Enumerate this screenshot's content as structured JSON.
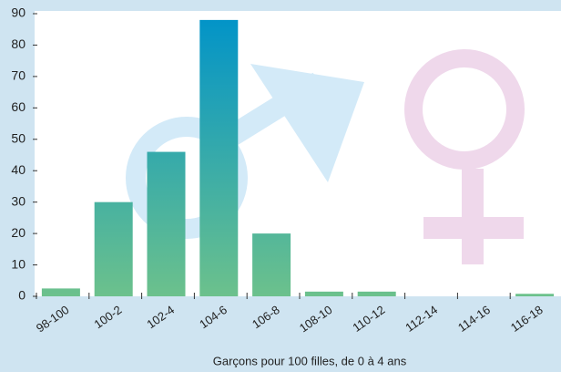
{
  "chart_data": {
    "type": "bar",
    "x_label": "Garçons pour 100 filles, de 0 à 4 ans",
    "categories": [
      "98-100",
      "100-2",
      "102-4",
      "104-6",
      "106-8",
      "108-10",
      "110-12",
      "112-14",
      "114-16",
      "116-18"
    ],
    "values": [
      2.5,
      30,
      46,
      88,
      20,
      1.5,
      1.5,
      0,
      0,
      0.8
    ],
    "colors": [
      "#6cc18c",
      "#0093c9"
    ],
    "ylim": [
      0,
      90
    ],
    "yticks": [
      0,
      10,
      20,
      30,
      40,
      50,
      60,
      70,
      80,
      90
    ]
  }
}
